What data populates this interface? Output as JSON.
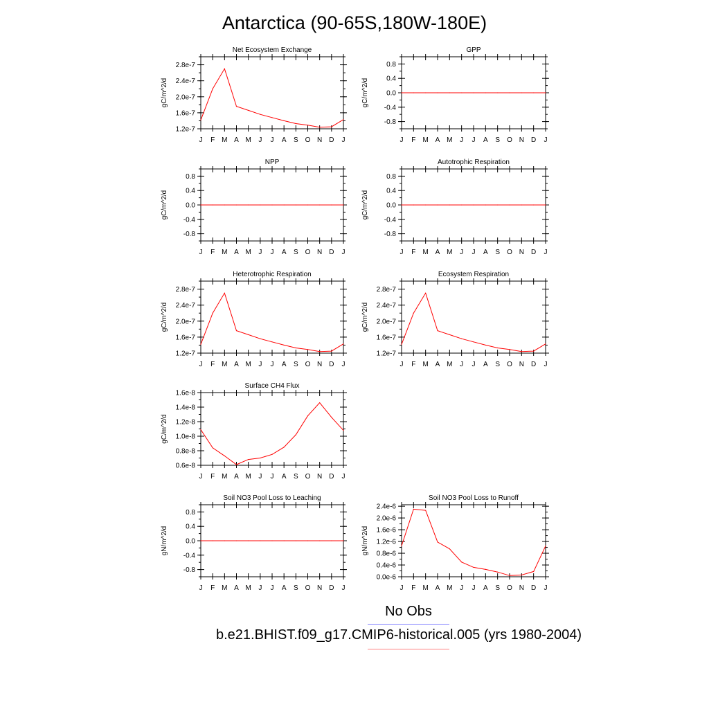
{
  "title": "Antarctica (90-65S,180W-180E)",
  "legend": {
    "obs_label": "No Obs",
    "case_label": "b.e21.BHIST.f09_g17.CMIP6-historical.005 (yrs 1980-2004)",
    "colors": {
      "obs": "#7f7fff",
      "case": "#ff7f7f"
    }
  },
  "colors": {
    "series": "#ff0000",
    "axis": "#000000"
  },
  "chart_data": [
    {
      "type": "line",
      "title": "Net Ecosystem Exchange",
      "ylabel": "gC/m^2/d",
      "x": [
        "J",
        "F",
        "M",
        "A",
        "M",
        "J",
        "J",
        "A",
        "S",
        "O",
        "N",
        "D",
        "J"
      ],
      "values": [
        1.42e-07,
        2.2e-07,
        2.7e-07,
        1.76e-07,
        1.66e-07,
        1.56e-07,
        1.48e-07,
        1.4e-07,
        1.33e-07,
        1.29e-07,
        1.24e-07,
        1.25e-07,
        1.43e-07
      ],
      "ylim": [
        1.2e-07,
        3e-07
      ],
      "yticks": [
        1.2e-07,
        1.6e-07,
        2e-07,
        2.4e-07,
        2.8e-07
      ],
      "ytick_labels": [
        "1.2e-7",
        "1.6e-7",
        "2.0e-7",
        "2.4e-7",
        "2.8e-7"
      ]
    },
    {
      "type": "line",
      "title": "GPP",
      "ylabel": "gC/m^2/d",
      "x": [
        "J",
        "F",
        "M",
        "A",
        "M",
        "J",
        "J",
        "A",
        "S",
        "O",
        "N",
        "D",
        "J"
      ],
      "values": [
        0,
        0,
        0,
        0,
        0,
        0,
        0,
        0,
        0,
        0,
        0,
        0,
        0
      ],
      "ylim": [
        -1.0,
        1.0
      ],
      "yticks": [
        -0.8,
        -0.4,
        0.0,
        0.4,
        0.8
      ],
      "ytick_labels": [
        "-0.8",
        "-0.4",
        "0.0",
        "0.4",
        "0.8"
      ]
    },
    {
      "type": "line",
      "title": "NPP",
      "ylabel": "gC/m^2/d",
      "x": [
        "J",
        "F",
        "M",
        "A",
        "M",
        "J",
        "J",
        "A",
        "S",
        "O",
        "N",
        "D",
        "J"
      ],
      "values": [
        0,
        0,
        0,
        0,
        0,
        0,
        0,
        0,
        0,
        0,
        0,
        0,
        0
      ],
      "ylim": [
        -1.0,
        1.0
      ],
      "yticks": [
        -0.8,
        -0.4,
        0.0,
        0.4,
        0.8
      ],
      "ytick_labels": [
        "-0.8",
        "-0.4",
        "0.0",
        "0.4",
        "0.8"
      ]
    },
    {
      "type": "line",
      "title": "Autotrophic Respiration",
      "ylabel": "gC/m^2/d",
      "x": [
        "J",
        "F",
        "M",
        "A",
        "M",
        "J",
        "J",
        "A",
        "S",
        "O",
        "N",
        "D",
        "J"
      ],
      "values": [
        0,
        0,
        0,
        0,
        0,
        0,
        0,
        0,
        0,
        0,
        0,
        0,
        0
      ],
      "ylim": [
        -1.0,
        1.0
      ],
      "yticks": [
        -0.8,
        -0.4,
        0.0,
        0.4,
        0.8
      ],
      "ytick_labels": [
        "-0.8",
        "-0.4",
        "0.0",
        "0.4",
        "0.8"
      ]
    },
    {
      "type": "line",
      "title": "Heterotrophic Respiration",
      "ylabel": "gC/m^2/d",
      "x": [
        "J",
        "F",
        "M",
        "A",
        "M",
        "J",
        "J",
        "A",
        "S",
        "O",
        "N",
        "D",
        "J"
      ],
      "values": [
        1.42e-07,
        2.2e-07,
        2.7e-07,
        1.76e-07,
        1.66e-07,
        1.56e-07,
        1.48e-07,
        1.4e-07,
        1.33e-07,
        1.29e-07,
        1.24e-07,
        1.25e-07,
        1.43e-07
      ],
      "ylim": [
        1.2e-07,
        3e-07
      ],
      "yticks": [
        1.2e-07,
        1.6e-07,
        2e-07,
        2.4e-07,
        2.8e-07
      ],
      "ytick_labels": [
        "1.2e-7",
        "1.6e-7",
        "2.0e-7",
        "2.4e-7",
        "2.8e-7"
      ]
    },
    {
      "type": "line",
      "title": "Ecosystem Respiration",
      "ylabel": "gC/m^2/d",
      "x": [
        "J",
        "F",
        "M",
        "A",
        "M",
        "J",
        "J",
        "A",
        "S",
        "O",
        "N",
        "D",
        "J"
      ],
      "values": [
        1.42e-07,
        2.2e-07,
        2.7e-07,
        1.76e-07,
        1.66e-07,
        1.56e-07,
        1.48e-07,
        1.4e-07,
        1.33e-07,
        1.29e-07,
        1.24e-07,
        1.25e-07,
        1.43e-07
      ],
      "ylim": [
        1.2e-07,
        3e-07
      ],
      "yticks": [
        1.2e-07,
        1.6e-07,
        2e-07,
        2.4e-07,
        2.8e-07
      ],
      "ytick_labels": [
        "1.2e-7",
        "1.6e-7",
        "2.0e-7",
        "2.4e-7",
        "2.8e-7"
      ]
    },
    {
      "type": "line",
      "title": "Surface CH4 Flux",
      "ylabel": "gC/m^2/d",
      "x": [
        "J",
        "F",
        "M",
        "A",
        "M",
        "J",
        "J",
        "A",
        "S",
        "O",
        "N",
        "D",
        "J"
      ],
      "values": [
        1.09e-08,
        8.4e-09,
        7.3e-09,
        6.1e-09,
        6.8e-09,
        7e-09,
        7.5e-09,
        8.5e-09,
        1.02e-08,
        1.28e-08,
        1.46e-08,
        1.26e-08,
        1.08e-08
      ],
      "ylim": [
        6e-09,
        1.6e-08
      ],
      "yticks": [
        6e-09,
        8e-09,
        1e-08,
        1.2e-08,
        1.4e-08,
        1.6e-08
      ],
      "ytick_labels": [
        "0.6e-8",
        "0.8e-8",
        "1.0e-8",
        "1.2e-8",
        "1.4e-8",
        "1.6e-8"
      ]
    },
    {
      "type": "line",
      "title": "Soil NO3 Pool Loss to Leaching",
      "ylabel": "gN/m^2/d",
      "x": [
        "J",
        "F",
        "M",
        "A",
        "M",
        "J",
        "J",
        "A",
        "S",
        "O",
        "N",
        "D",
        "J"
      ],
      "values": [
        0,
        0,
        0,
        0,
        0,
        0,
        0,
        0,
        0,
        0,
        0,
        0,
        0
      ],
      "ylim": [
        -1.0,
        1.0
      ],
      "yticks": [
        -0.8,
        -0.4,
        0.0,
        0.4,
        0.8
      ],
      "ytick_labels": [
        "-0.8",
        "-0.4",
        "0.0",
        "0.4",
        "0.8"
      ]
    },
    {
      "type": "line",
      "title": "Soil NO3 Pool Loss to Runoff",
      "ylabel": "gN/m^2/d",
      "x": [
        "J",
        "F",
        "M",
        "A",
        "M",
        "J",
        "J",
        "A",
        "S",
        "O",
        "N",
        "D",
        "J"
      ],
      "values": [
        1.05e-06,
        2.3e-06,
        2.26e-06,
        1.18e-06,
        9.5e-07,
        5e-07,
        3.2e-07,
        2.5e-07,
        1.6e-07,
        4e-08,
        6e-08,
        1.8e-07,
        1.05e-06
      ],
      "ylim": [
        0.0,
        2.45e-06
      ],
      "yticks": [
        0.0,
        4e-07,
        8e-07,
        1.2e-06,
        1.6e-06,
        2e-06,
        2.4e-06
      ],
      "ytick_labels": [
        "0.0e-6",
        "0.4e-6",
        "0.8e-6",
        "1.2e-6",
        "1.6e-6",
        "2.0e-6",
        "2.4e-6"
      ]
    }
  ]
}
